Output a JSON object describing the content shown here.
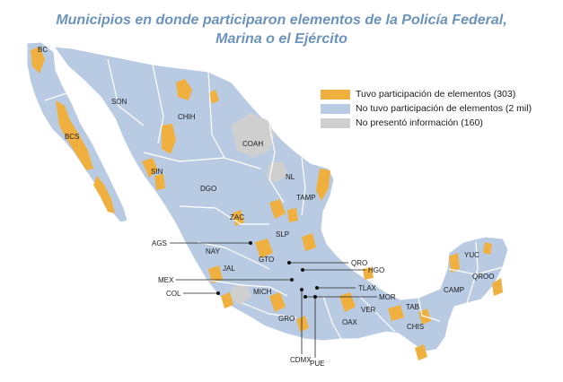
{
  "title": {
    "line1": "Municipios en donde participaron elementos de la Policía Federal,",
    "line2": "Marina o el Ejército"
  },
  "legend": [
    {
      "label": "Tuvo participación de elementos (303)",
      "color": "#f0b040"
    },
    {
      "label": "No tuvo participación de elementos (2 mil)",
      "color": "#b9cbe3"
    },
    {
      "label": "No presentó información (160)",
      "color": "#cfcfcf"
    }
  ],
  "states": {
    "bc": "BC",
    "bcs": "BCS",
    "son": "SON",
    "chih": "CHIH",
    "coah": "COAH",
    "sin": "SIN",
    "dgo": "DGO",
    "nl": "NL",
    "tamp": "TAMP",
    "zac": "ZAC",
    "slp": "SLP",
    "nay": "NAY",
    "gto": "GTO",
    "jal": "JAL",
    "mich": "MICH",
    "gro": "GRO",
    "oax": "OAX",
    "ver": "VER",
    "tab": "TAB",
    "chis": "CHIS",
    "camp": "CAMP",
    "yuc": "YUC",
    "qroo": "QROO"
  },
  "callouts": {
    "ags": "AGS",
    "qro": "QRO",
    "hgo": "HGO",
    "mex": "MEX",
    "tlax": "TLAX",
    "col": "COL",
    "mor": "MOR",
    "cdmx": "CDMX",
    "pue": "PUE"
  }
}
